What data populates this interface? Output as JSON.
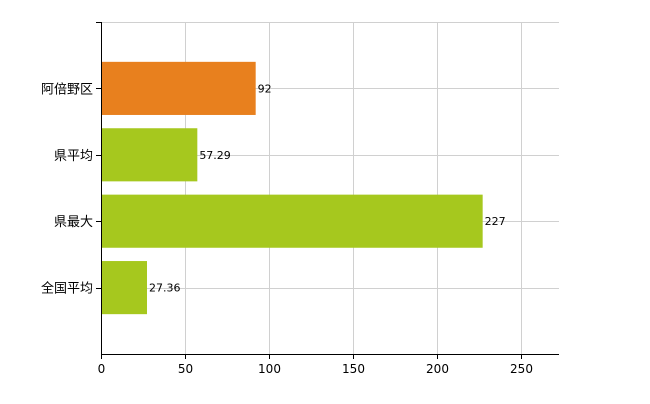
{
  "chart_data": {
    "type": "bar",
    "orientation": "horizontal",
    "categories": [
      "阿倍野区",
      "県平均",
      "県最大",
      "全国平均"
    ],
    "values": [
      92,
      57.29,
      227,
      27.36
    ],
    "data_labels": [
      "92",
      "57.29",
      "227",
      "27.36"
    ],
    "bar_colors": [
      "#e8801e",
      "#a6c81e",
      "#a6c81e",
      "#a6c81e"
    ],
    "xlim": [
      0,
      272.4
    ],
    "xticks": [
      0,
      50,
      100,
      150,
      200,
      250
    ],
    "xtick_labels": [
      "0",
      "50",
      "100",
      "150",
      "200",
      "250"
    ],
    "grid": true,
    "title": "",
    "xlabel": "",
    "ylabel": ""
  }
}
